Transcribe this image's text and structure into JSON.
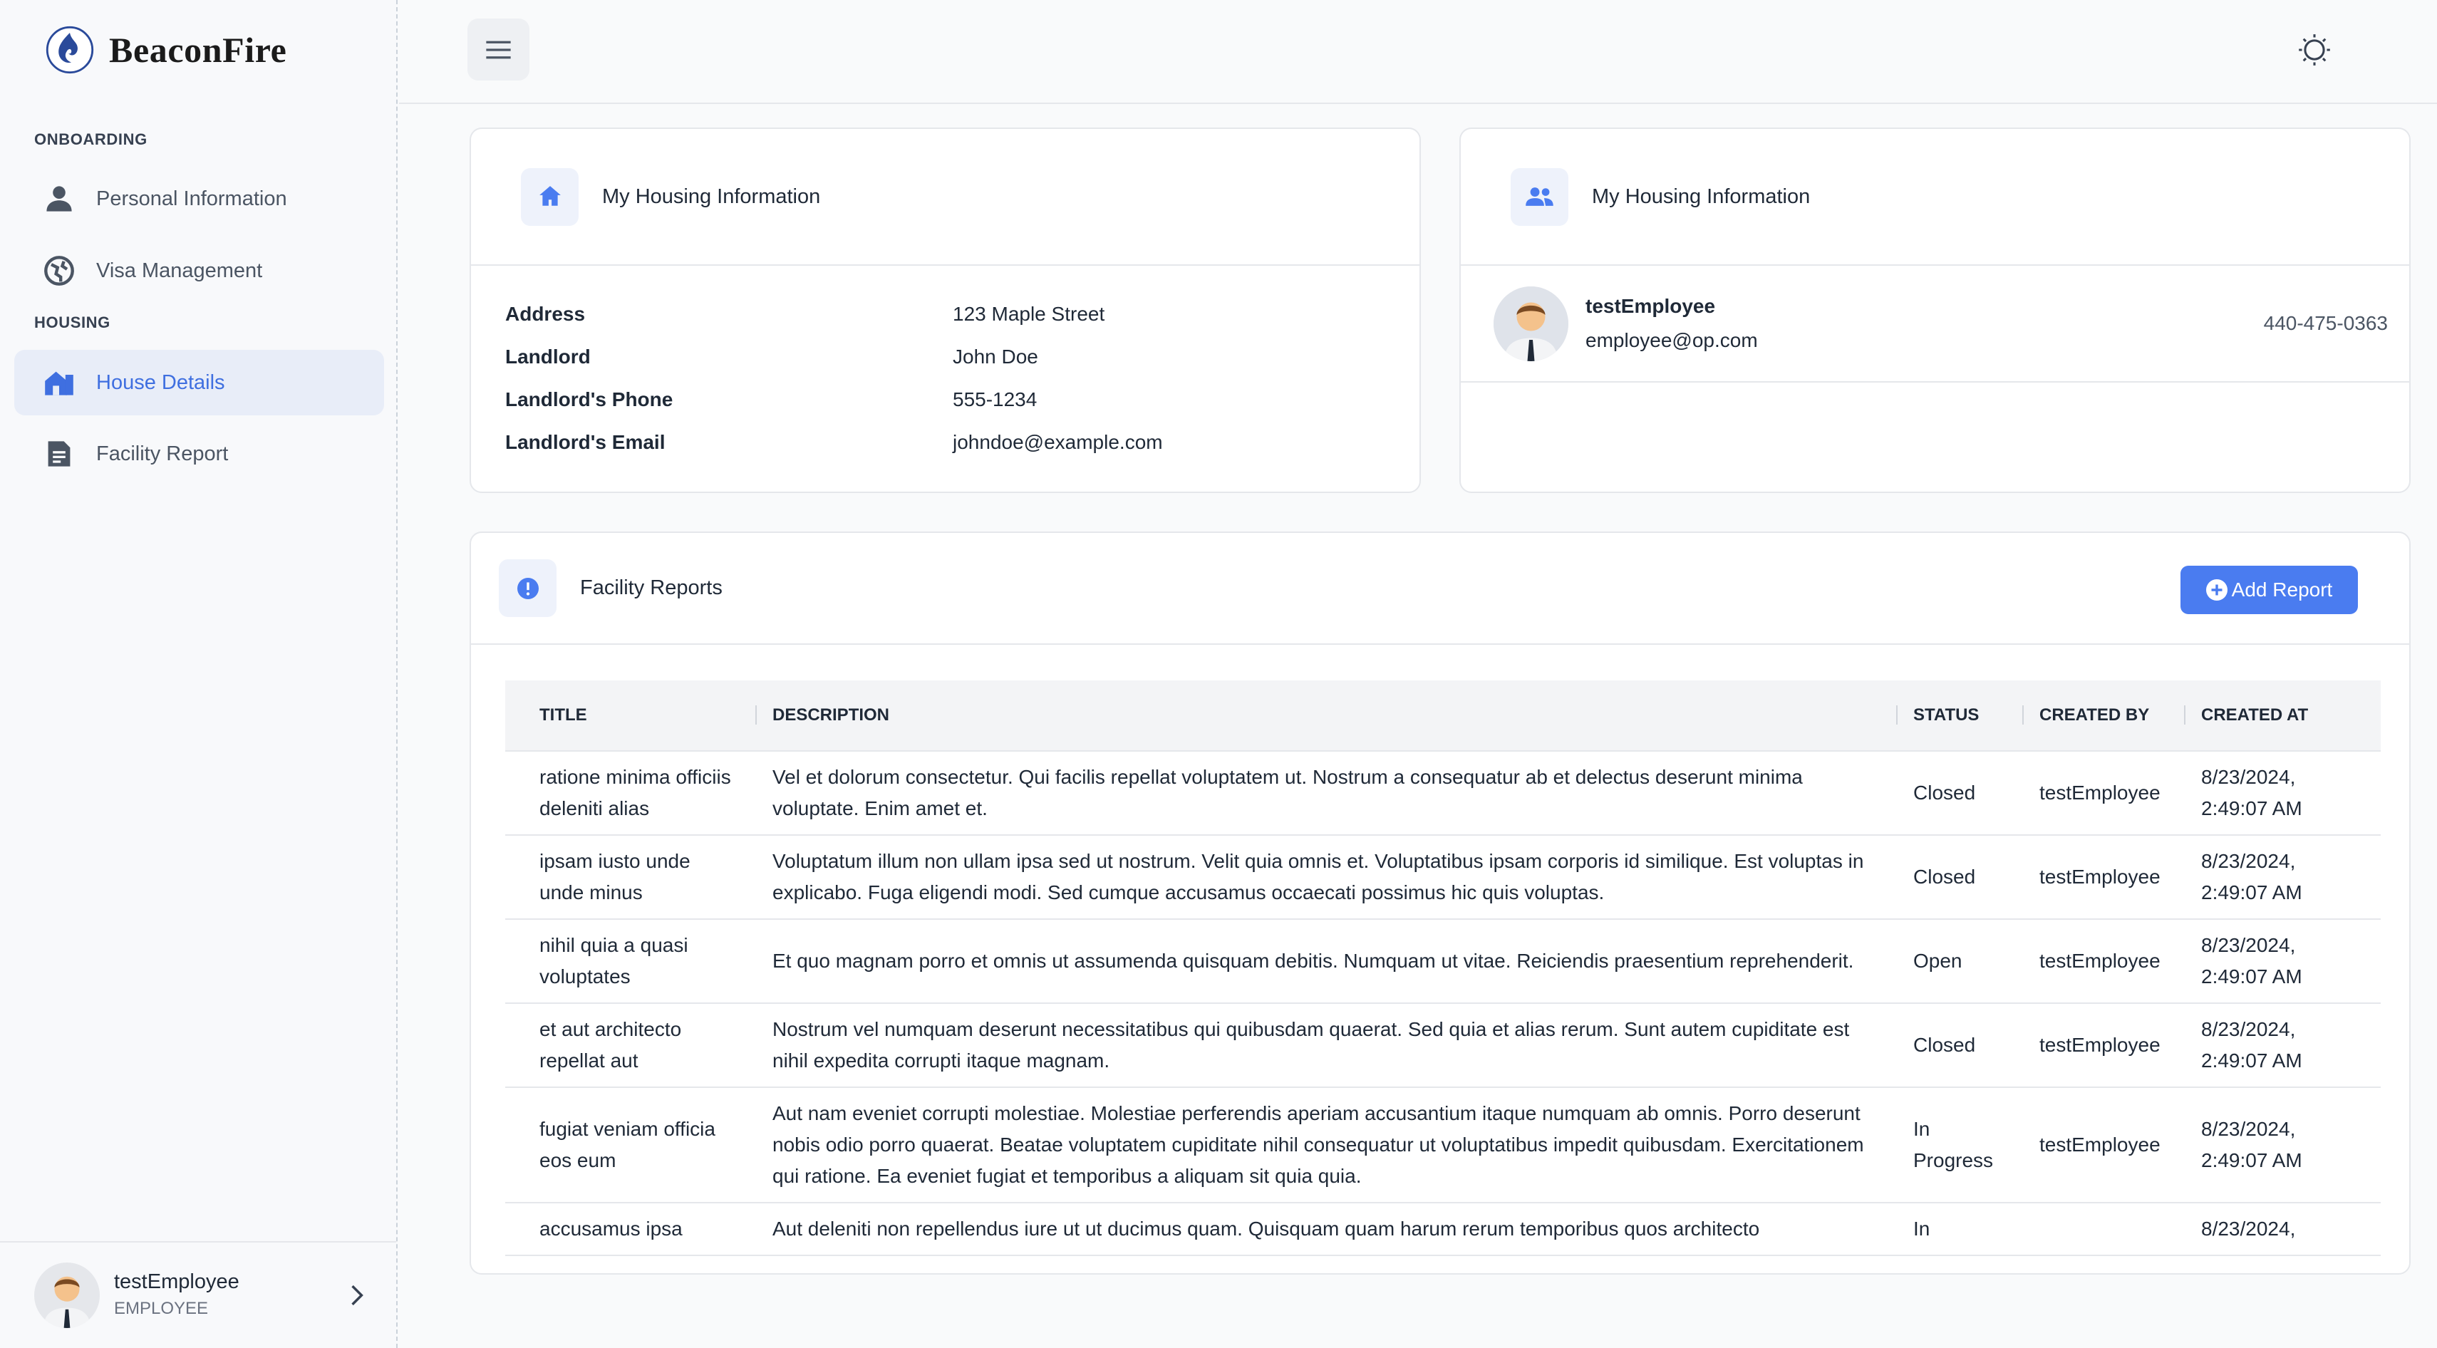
{
  "brand": {
    "name": "BeaconFire"
  },
  "sidebar": {
    "sections": [
      {
        "label": "ONBOARDING",
        "items": [
          {
            "label": "Personal Information",
            "icon": "person-icon"
          },
          {
            "label": "Visa Management",
            "icon": "globe-icon"
          }
        ]
      },
      {
        "label": "HOUSING",
        "items": [
          {
            "label": "House Details",
            "icon": "house-icon",
            "active": true
          },
          {
            "label": "Facility Report",
            "icon": "report-icon"
          }
        ]
      }
    ],
    "user": {
      "name": "testEmployee",
      "role": "EMPLOYEE"
    }
  },
  "housing": {
    "title": "My Housing Information",
    "fields": [
      {
        "label": "Address",
        "value": "123 Maple Street"
      },
      {
        "label": "Landlord",
        "value": "John Doe"
      },
      {
        "label": "Landlord's Phone",
        "value": "555-1234"
      },
      {
        "label": "Landlord's Email",
        "value": "johndoe@example.com"
      }
    ]
  },
  "roommates": {
    "title": "My Housing Information",
    "people": [
      {
        "name": "testEmployee",
        "email": "employee@op.com",
        "phone": "440-475-0363"
      }
    ]
  },
  "reports": {
    "title": "Facility Reports",
    "add_label": "Add Report",
    "columns": [
      "TITLE",
      "DESCRIPTION",
      "STATUS",
      "CREATED BY",
      "CREATED AT"
    ],
    "rows": [
      {
        "title": "ratione minima officiis deleniti alias",
        "description": "Vel et dolorum consectetur. Qui facilis repellat voluptatem ut. Nostrum a consequatur ab et delectus deserunt minima voluptate. Enim amet et.",
        "status": "Closed",
        "created_by": "testEmployee",
        "created_at": "8/23/2024, 2:49:07 AM"
      },
      {
        "title": "ipsam iusto unde unde minus",
        "description": "Voluptatum illum non ullam ipsa sed ut nostrum. Velit quia omnis et. Voluptatibus ipsam corporis id similique. Est voluptas in explicabo. Fuga eligendi modi. Sed cumque accusamus occaecati possimus hic quis voluptas.",
        "status": "Closed",
        "created_by": "testEmployee",
        "created_at": "8/23/2024, 2:49:07 AM"
      },
      {
        "title": "nihil quia a quasi voluptates",
        "description": "Et quo magnam porro et omnis ut assumenda quisquam debitis. Numquam ut vitae. Reiciendis praesentium reprehenderit.",
        "status": "Open",
        "created_by": "testEmployee",
        "created_at": "8/23/2024, 2:49:07 AM"
      },
      {
        "title": "et aut architecto repellat aut",
        "description": "Nostrum vel numquam deserunt necessitatibus qui quibusdam quaerat. Sed quia et alias rerum. Sunt autem cupiditate est nihil expedita corrupti itaque magnam.",
        "status": "Closed",
        "created_by": "testEmployee",
        "created_at": "8/23/2024, 2:49:07 AM"
      },
      {
        "title": "fugiat veniam officia eos eum",
        "description": "Aut nam eveniet corrupti molestiae. Molestiae perferendis aperiam accusantium itaque numquam ab omnis. Porro deserunt nobis odio porro quaerat. Beatae voluptatem cupiditate nihil consequatur ut voluptatibus impedit quibusdam. Exercitationem qui ratione. Ea eveniet fugiat et temporibus a aliquam sit quia quia.",
        "status": "In Progress",
        "created_by": "testEmployee",
        "created_at": "8/23/2024, 2:49:07 AM"
      },
      {
        "title": "accusamus ipsa",
        "description": "Aut deleniti non repellendus iure ut ut ducimus quam. Quisquam quam harum rerum temporibus quos architecto",
        "status": "In",
        "created_by": "",
        "created_at": "8/23/2024,"
      }
    ]
  },
  "colors": {
    "accent": "#4a7cf0",
    "active_bg": "#e8edf8"
  }
}
